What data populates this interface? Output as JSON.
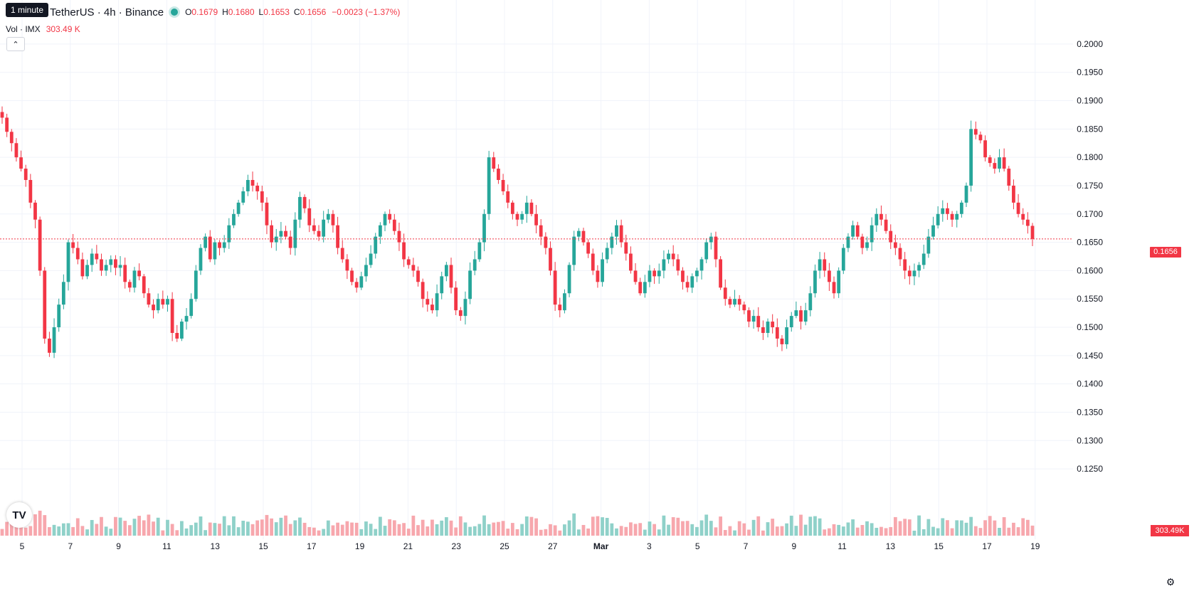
{
  "tooltip": "1 minute",
  "header": {
    "symbol_title": "TetherUS · 4h · Binance",
    "ohlc": {
      "o_label": "O",
      "o_value": "0.1679",
      "h_label": "H",
      "h_value": "0.1680",
      "l_label": "L",
      "l_value": "0.1653",
      "c_label": "C",
      "c_value": "0.1656",
      "change": "−0.0023 (−1.37%)"
    },
    "volume_label": "Vol · IMX",
    "volume_value": "303.49 K"
  },
  "collapse_icon": "chevron-up-icon",
  "last_price_label": "0.1656",
  "last_volume_label": "303.49K",
  "colors": {
    "up": "#26a69a",
    "down": "#f23645",
    "up_vol": "#8fd1c9",
    "down_vol": "#f7a7ad",
    "grid": "#f0f3fa"
  },
  "chart_data": {
    "type": "candlestick",
    "interval": "4h",
    "y_ticks": [
      "0.2000",
      "0.1950",
      "0.1900",
      "0.1850",
      "0.1800",
      "0.1750",
      "0.1700",
      "0.1650",
      "0.1600",
      "0.1550",
      "0.1500",
      "0.1450",
      "0.1400",
      "0.1350",
      "0.1300",
      "0.1250"
    ],
    "ylim": [
      0.122,
      0.203
    ],
    "x_ticks": [
      "5",
      "7",
      "9",
      "11",
      "13",
      "15",
      "17",
      "19",
      "21",
      "23",
      "25",
      "27",
      "Mar",
      "3",
      "5",
      "7",
      "9",
      "11",
      "13",
      "15",
      "17",
      "19"
    ],
    "x_tick_bold": "Mar",
    "last_price": 0.1656,
    "closes": [
      0.187,
      0.1845,
      0.1825,
      0.18,
      0.178,
      0.176,
      0.172,
      0.169,
      0.16,
      0.148,
      0.1455,
      0.15,
      0.154,
      0.158,
      0.165,
      0.164,
      0.162,
      0.159,
      0.161,
      0.163,
      0.162,
      0.16,
      0.161,
      0.162,
      0.1605,
      0.161,
      0.158,
      0.157,
      0.16,
      0.159,
      0.156,
      0.154,
      0.153,
      0.155,
      0.154,
      0.155,
      0.149,
      0.148,
      0.151,
      0.152,
      0.155,
      0.16,
      0.164,
      0.166,
      0.162,
      0.165,
      0.164,
      0.165,
      0.168,
      0.17,
      0.172,
      0.174,
      0.176,
      0.175,
      0.174,
      0.172,
      0.168,
      0.165,
      0.166,
      0.167,
      0.166,
      0.164,
      0.169,
      0.173,
      0.171,
      0.168,
      0.167,
      0.166,
      0.169,
      0.17,
      0.168,
      0.164,
      0.162,
      0.16,
      0.158,
      0.157,
      0.159,
      0.161,
      0.163,
      0.166,
      0.168,
      0.17,
      0.169,
      0.167,
      0.165,
      0.162,
      0.161,
      0.16,
      0.158,
      0.155,
      0.154,
      0.153,
      0.156,
      0.159,
      0.161,
      0.157,
      0.153,
      0.152,
      0.155,
      0.16,
      0.162,
      0.165,
      0.17,
      0.18,
      0.178,
      0.176,
      0.174,
      0.172,
      0.17,
      0.169,
      0.17,
      0.172,
      0.17,
      0.168,
      0.166,
      0.164,
      0.16,
      0.154,
      0.153,
      0.156,
      0.161,
      0.166,
      0.167,
      0.165,
      0.163,
      0.16,
      0.158,
      0.162,
      0.164,
      0.166,
      0.168,
      0.165,
      0.163,
      0.16,
      0.158,
      0.156,
      0.158,
      0.16,
      0.159,
      0.16,
      0.162,
      0.163,
      0.162,
      0.16,
      0.158,
      0.157,
      0.159,
      0.16,
      0.162,
      0.165,
      0.166,
      0.162,
      0.157,
      0.155,
      0.154,
      0.155,
      0.154,
      0.153,
      0.151,
      0.152,
      0.15,
      0.149,
      0.151,
      0.15,
      0.148,
      0.147,
      0.15,
      0.152,
      0.153,
      0.151,
      0.153,
      0.156,
      0.16,
      0.162,
      0.16,
      0.158,
      0.156,
      0.16,
      0.164,
      0.166,
      0.168,
      0.166,
      0.164,
      0.165,
      0.168,
      0.17,
      0.169,
      0.167,
      0.165,
      0.164,
      0.162,
      0.16,
      0.159,
      0.16,
      0.161,
      0.163,
      0.166,
      0.168,
      0.17,
      0.171,
      0.17,
      0.169,
      0.17,
      0.172,
      0.175,
      0.185,
      0.184,
      0.183,
      0.18,
      0.179,
      0.178,
      0.18,
      0.178,
      0.175,
      0.172,
      0.17,
      0.169,
      0.1679,
      0.1656
    ]
  }
}
